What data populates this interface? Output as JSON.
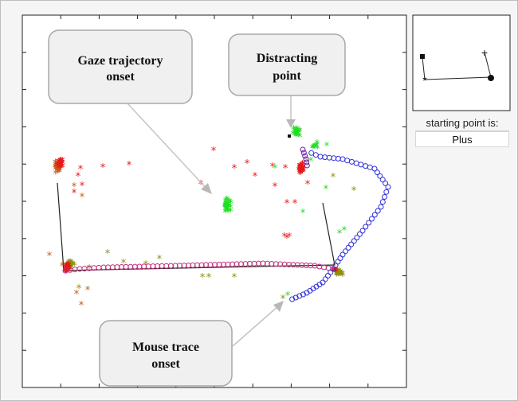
{
  "callouts": {
    "gaze": [
      "Gaze trajectory",
      "onset"
    ],
    "distracting": [
      "Distracting",
      "point"
    ],
    "mouse": [
      "Mouse trace",
      "onset"
    ]
  },
  "status": {
    "label": "starting point is:",
    "value": "Plus"
  },
  "colors": {
    "gaze_red": "#e61a1a",
    "gaze_green": "#22dd22",
    "gaze_olive": "#8f8f10",
    "gaze_orange": "#cc5a14",
    "mouse_blue": "#3030d8",
    "mouse_magenta": "#c0307a",
    "mouse_purple": "#6a1aa0",
    "callout_arrow": "#c4c4c4"
  },
  "legend_markers": [
    "square-marker",
    "plus-marker",
    "asterisk-marker",
    "dot-marker"
  ]
}
